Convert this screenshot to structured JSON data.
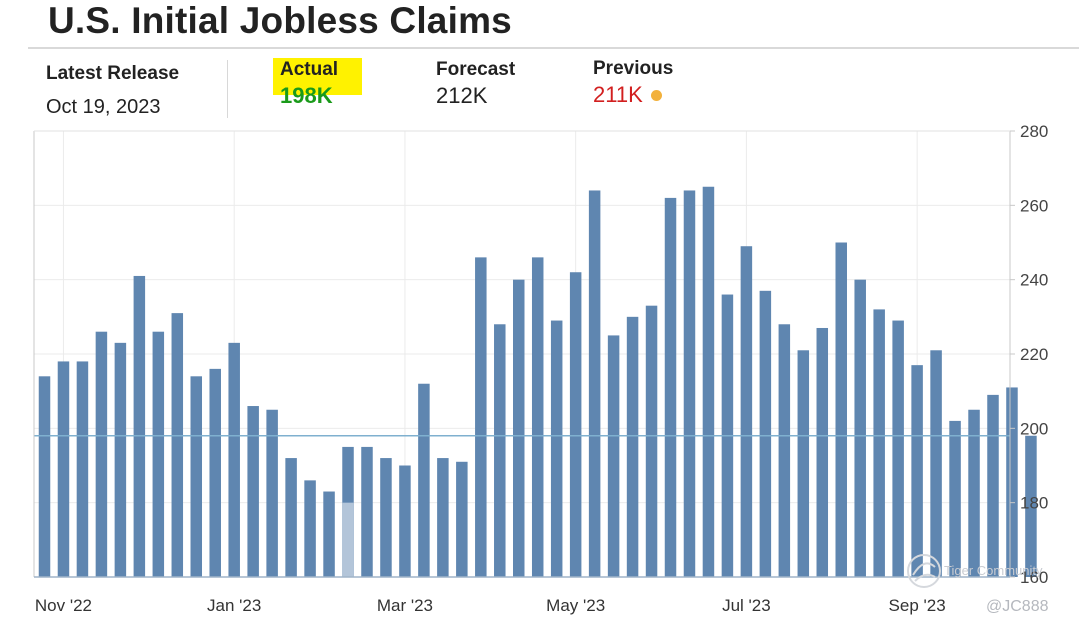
{
  "header": {
    "title": "U.S. Initial Jobless Claims"
  },
  "stats": {
    "latest": {
      "label": "Latest Release",
      "value": "Oct 19, 2023"
    },
    "actual": {
      "label": "Actual",
      "value": "198K",
      "color": "#1a9a1a",
      "highlight": "#fff200"
    },
    "forecast": {
      "label": "Forecast",
      "value": "212K"
    },
    "previous": {
      "label": "Previous",
      "value": "211K",
      "color": "#d21f1f",
      "indicator_color": "#f2b13c"
    }
  },
  "watermark": {
    "logo_text": "Tiger Community",
    "handle": "@JC888"
  },
  "chart_data": {
    "type": "bar",
    "unit": "K",
    "x_tick_labels": [
      "Nov '22",
      "Jan '23",
      "Mar '23",
      "May '23",
      "Jul '23",
      "Sep '23"
    ],
    "x_tick_bar_index": [
      1,
      10,
      19,
      28,
      37,
      46
    ],
    "y_ticks": [
      160,
      180,
      200,
      220,
      240,
      260,
      280
    ],
    "ylim": [
      160,
      280
    ],
    "reference_line": 198,
    "highlighted_bar_index": 16,
    "grid": true,
    "bar_color": "#5f86b0",
    "highlight_bar_color": "#b3c5d9",
    "values": [
      214,
      218,
      218,
      226,
      223,
      241,
      226,
      231,
      214,
      216,
      223,
      206,
      205,
      192,
      186,
      183,
      195,
      195,
      192,
      190,
      212,
      192,
      191,
      246,
      228,
      240,
      246,
      229,
      242,
      264,
      225,
      230,
      233,
      262,
      264,
      265,
      236,
      249,
      237,
      228,
      221,
      227,
      250,
      240,
      232,
      229,
      217,
      221,
      202,
      205,
      209,
      211,
      198
    ]
  }
}
